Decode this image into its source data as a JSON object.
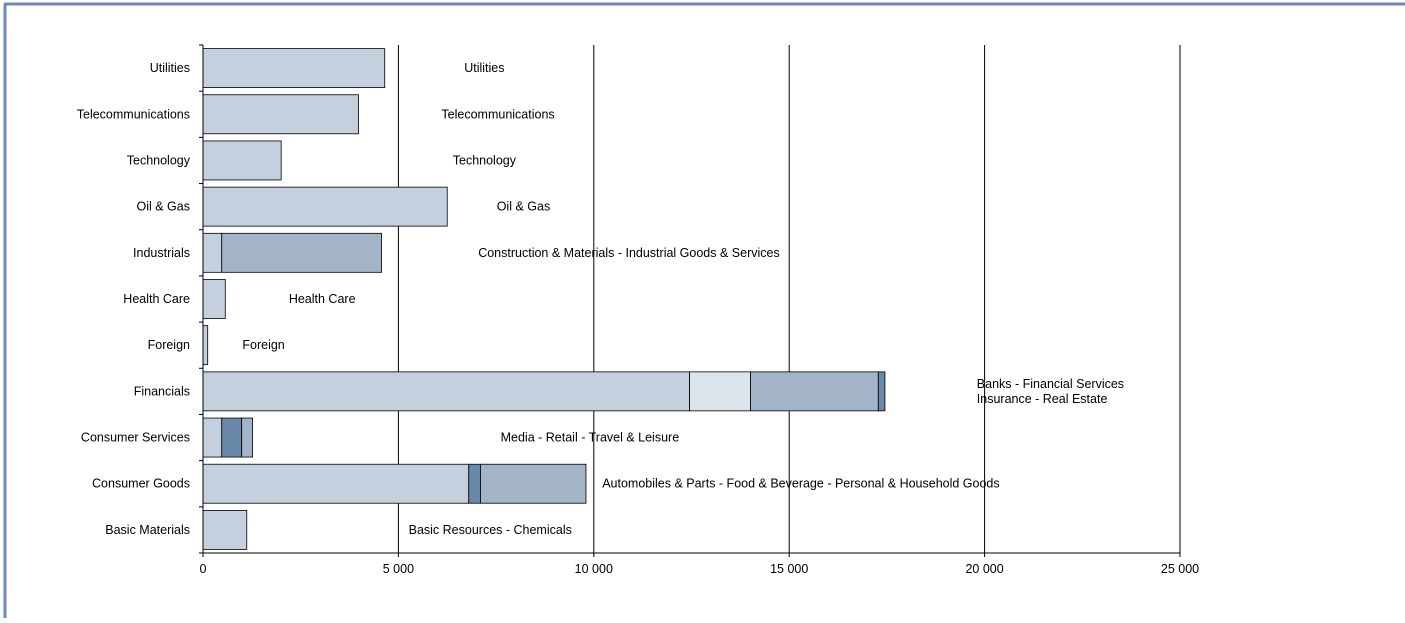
{
  "chart_data": {
    "type": "bar",
    "orientation": "horizontal",
    "stacked": true,
    "title": "",
    "xlabel": "",
    "ylabel": "",
    "xlim": [
      0,
      25000
    ],
    "x_ticks": [
      0,
      5000,
      10000,
      15000,
      20000,
      25000
    ],
    "x_tick_labels": [
      "0",
      "5 000",
      "10 000",
      "15 000",
      "20 000",
      "25 000"
    ],
    "grid": "vertical major gridlines",
    "legend": "none",
    "categories": [
      "Utilities",
      "Telecommunications",
      "Technology",
      "Oil & Gas",
      "Industrials",
      "Health Care",
      "Foreign",
      "Financials",
      "Consumer Services",
      "Consumer Goods",
      "Basic Materials"
    ],
    "segments": [
      [
        4650
      ],
      [
        3980
      ],
      [
        2000
      ],
      [
        6250
      ],
      [
        480,
        4090
      ],
      [
        570
      ],
      [
        120
      ],
      [
        12450,
        1560,
        3270,
        170
      ],
      [
        480,
        510,
        280
      ],
      [
        6800,
        300,
        2700
      ],
      [
        1120
      ]
    ],
    "annotations": [
      {
        "lines": [
          "Utilities"
        ],
        "x": 7200
      },
      {
        "lines": [
          "Telecommunications"
        ],
        "x": 7550
      },
      {
        "lines": [
          "Technology"
        ],
        "x": 7200
      },
      {
        "lines": [
          "Oil & Gas"
        ],
        "x": 8200
      },
      {
        "lines": [
          "Construction & Materials - Industrial Goods & Services"
        ],
        "x": 10900
      },
      {
        "lines": [
          "Health Care"
        ],
        "x": 3050
      },
      {
        "lines": [
          "Foreign"
        ],
        "x": 1550
      },
      {
        "lines": [
          "Banks - Financial Services",
          "Insurance - Real Estate"
        ],
        "x": 19800,
        "anchor": "start"
      },
      {
        "lines": [
          "Media - Retail - Travel & Leisure"
        ],
        "x": 9900
      },
      {
        "lines": [
          "Automobiles & Parts - Food & Beverage  - Personal & Household Goods"
        ],
        "x": 15300
      },
      {
        "lines": [
          "Basic Resources - Chemicals"
        ],
        "x": 7350
      }
    ],
    "colors": {
      "light": "#c4d0de",
      "pale": "#dce4ec",
      "medium": "#a3b4c9",
      "dark": "#6a88a8",
      "frame": "#6f8bb5"
    }
  }
}
